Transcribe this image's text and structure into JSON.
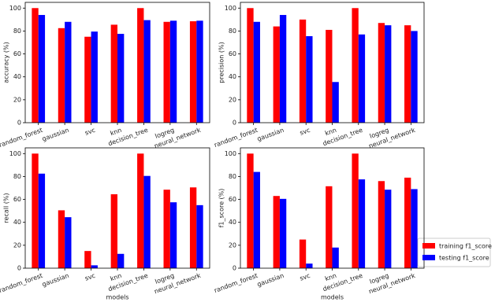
{
  "chart_data": [
    {
      "type": "bar",
      "ylabel": "accuracy (%)",
      "categories": [
        "random_forest",
        "gaussian",
        "svc",
        "knn",
        "decision_tree",
        "logreg",
        "neural_network"
      ],
      "series": [
        {
          "color": "#ff0000",
          "values": [
            100,
            82.5,
            75,
            85.5,
            100,
            88,
            88.5
          ]
        },
        {
          "color": "#0000ff",
          "values": [
            94,
            88,
            79.5,
            77.5,
            89.5,
            89,
            89
          ]
        }
      ],
      "ylim": [
        0,
        105
      ],
      "yticks": [
        0,
        20,
        40,
        60,
        80,
        100
      ]
    },
    {
      "type": "bar",
      "ylabel": "precision (%)",
      "categories": [
        "random_forest",
        "gaussian",
        "svc",
        "knn",
        "decision_tree",
        "logreg",
        "neural_network"
      ],
      "series": [
        {
          "color": "#ff0000",
          "values": [
            100,
            84,
            90,
            81,
            100,
            87,
            85
          ]
        },
        {
          "color": "#0000ff",
          "values": [
            88,
            94,
            75.5,
            35.5,
            77,
            85,
            80
          ]
        }
      ],
      "ylim": [
        0,
        105
      ],
      "yticks": [
        0,
        20,
        40,
        60,
        80,
        100
      ]
    },
    {
      "type": "bar",
      "ylabel": "recall (%)",
      "xlabel": "models",
      "categories": [
        "random_forest",
        "gaussian",
        "svc",
        "knn",
        "decision_tree",
        "logreg",
        "neural_network"
      ],
      "series": [
        {
          "color": "#ff0000",
          "values": [
            100,
            50.5,
            15,
            64.5,
            100,
            68.5,
            70.5
          ]
        },
        {
          "color": "#0000ff",
          "values": [
            82.5,
            44.5,
            2.5,
            12.5,
            80.5,
            57.5,
            55
          ]
        }
      ],
      "ylim": [
        0,
        105
      ],
      "yticks": [
        0,
        20,
        40,
        60,
        80,
        100
      ]
    },
    {
      "type": "bar",
      "ylabel": "f1_score (%)",
      "xlabel": "models",
      "categories": [
        "random_forest",
        "gaussian",
        "svc",
        "knn",
        "decision_tree",
        "logreg",
        "neural_network"
      ],
      "series": [
        {
          "name": "training f1_score",
          "color": "#ff0000",
          "values": [
            100,
            63,
            25,
            71.5,
            100,
            76,
            79
          ]
        },
        {
          "name": "testing f1_score",
          "color": "#0000ff",
          "values": [
            84,
            60.5,
            4,
            18,
            77.5,
            68.5,
            69
          ]
        }
      ],
      "ylim": [
        0,
        105
      ],
      "yticks": [
        0,
        20,
        40,
        60,
        80,
        100
      ]
    }
  ]
}
